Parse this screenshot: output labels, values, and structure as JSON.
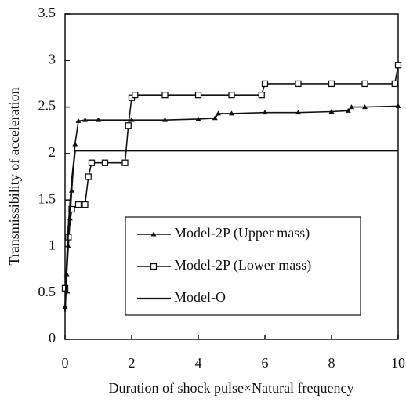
{
  "chart_data": {
    "type": "line",
    "xlabel": "Duration of shock pulse×Natural frequency",
    "ylabel": "Transmissibility of acceleration",
    "xlim": [
      0,
      10
    ],
    "ylim": [
      0,
      3.5
    ],
    "xticks": [
      0,
      2,
      4,
      6,
      8,
      10
    ],
    "yticks": [
      0,
      0.5,
      1,
      1.5,
      2,
      2.5,
      3,
      3.5
    ],
    "grid": false,
    "legend": "lower right",
    "series": [
      {
        "name": "Model-2P (Upper mass)",
        "color": "#111111",
        "marker": "triangle",
        "x": [
          0,
          0.05,
          0.1,
          0.15,
          0.2,
          0.3,
          0.4,
          0.6,
          1,
          2,
          3,
          4,
          4.5,
          4.6,
          5,
          6,
          7,
          8,
          8.5,
          8.6,
          9,
          10
        ],
        "values": [
          0.35,
          0.7,
          1.0,
          1.3,
          1.6,
          2.1,
          2.35,
          2.36,
          2.36,
          2.36,
          2.36,
          2.37,
          2.38,
          2.43,
          2.43,
          2.44,
          2.44,
          2.45,
          2.46,
          2.5,
          2.5,
          2.51
        ]
      },
      {
        "name": "Model-2P (Lower mass)",
        "color": "#111111",
        "marker": "square",
        "x": [
          0,
          0.1,
          0.2,
          0.4,
          0.6,
          0.7,
          0.8,
          1.2,
          1.8,
          1.9,
          2.0,
          2.1,
          3,
          4,
          5,
          5.9,
          6,
          7,
          8,
          9,
          9.9,
          10
        ],
        "values": [
          0.55,
          1.1,
          1.4,
          1.45,
          1.45,
          1.75,
          1.9,
          1.9,
          1.9,
          2.3,
          2.6,
          2.63,
          2.63,
          2.63,
          2.63,
          2.63,
          2.75,
          2.75,
          2.75,
          2.75,
          2.75,
          2.95
        ]
      },
      {
        "name": "Model-O",
        "color": "#111111",
        "marker": "none",
        "x": [
          0,
          0.05,
          0.1,
          0.2,
          0.3,
          10
        ],
        "values": [
          0.3,
          0.8,
          1.2,
          1.7,
          2.03,
          2.03
        ]
      }
    ]
  }
}
